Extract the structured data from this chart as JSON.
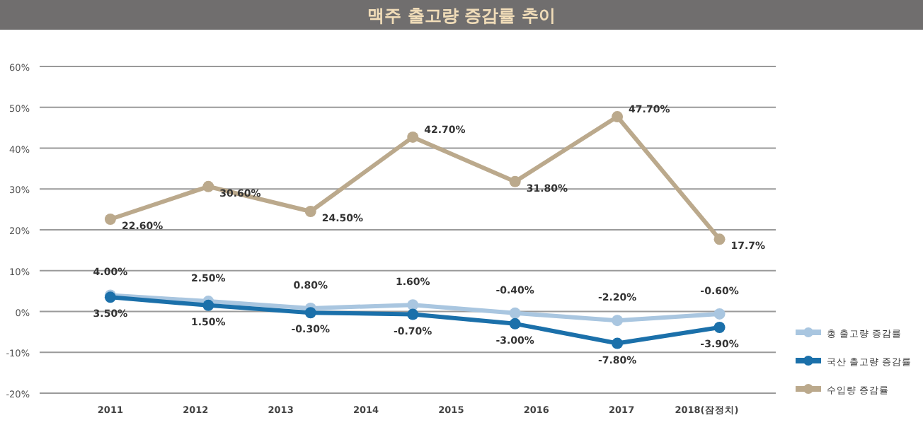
{
  "chart_data": {
    "type": "line",
    "title": "맥주 출고량 증감률 추이",
    "x": [
      2011,
      2012.15,
      2013.35,
      2014.55,
      2015.75,
      2016.95,
      2018.15
    ],
    "xlim": [
      2010.17,
      2018.81
    ],
    "xticks": [
      {
        "value": 2011,
        "label": "2011"
      },
      {
        "value": 2012,
        "label": "2012"
      },
      {
        "value": 2013,
        "label": "2013"
      },
      {
        "value": 2014,
        "label": "2014"
      },
      {
        "value": 2015,
        "label": "2015"
      },
      {
        "value": 2016,
        "label": "2016"
      },
      {
        "value": 2017,
        "label": "2017"
      },
      {
        "value": 2018,
        "label": "2018(잠정치)"
      }
    ],
    "ylim": [
      -20,
      60
    ],
    "yticks": [
      {
        "value": -20,
        "label": "-20%"
      },
      {
        "value": -10,
        "label": "-10%"
      },
      {
        "value": 0,
        "label": "0%"
      },
      {
        "value": 10,
        "label": "10%"
      },
      {
        "value": 20,
        "label": "20%"
      },
      {
        "value": 30,
        "label": "30%"
      },
      {
        "value": 40,
        "label": "40%"
      },
      {
        "value": 50,
        "label": "50%"
      },
      {
        "value": 60,
        "label": "60%"
      }
    ],
    "grid": "y",
    "legend": "right",
    "marker": "circle",
    "line_style": "solid",
    "series": [
      {
        "name": "총 출고량 증감률",
        "color": "#a9c6e0",
        "values": [
          4.0,
          2.5,
          0.8,
          1.6,
          -0.4,
          -2.2,
          -0.6
        ],
        "value_labels": [
          "4.00%",
          "2.50%",
          "0.80%",
          "1.60%",
          "-0.40%",
          "-2.20%",
          "-0.60%"
        ]
      },
      {
        "name": "국산 출고량 증감률",
        "color": "#1b70aa",
        "values": [
          3.5,
          1.5,
          -0.3,
          -0.7,
          -3.0,
          -7.8,
          -3.9
        ],
        "value_labels": [
          "3.50%",
          "1.50%",
          "-0.30%",
          "-0.70%",
          "-3.00%",
          "-7.80%",
          "-3.90%"
        ]
      },
      {
        "name": "수입량 증감률",
        "color": "#bba98c",
        "values": [
          22.6,
          30.6,
          24.5,
          42.7,
          31.8,
          47.7,
          17.7
        ],
        "value_labels": [
          "22.60%",
          "30.60%",
          "24.50%",
          "42.70%",
          "31.80%",
          "47.70%",
          "17.7%"
        ]
      }
    ]
  }
}
